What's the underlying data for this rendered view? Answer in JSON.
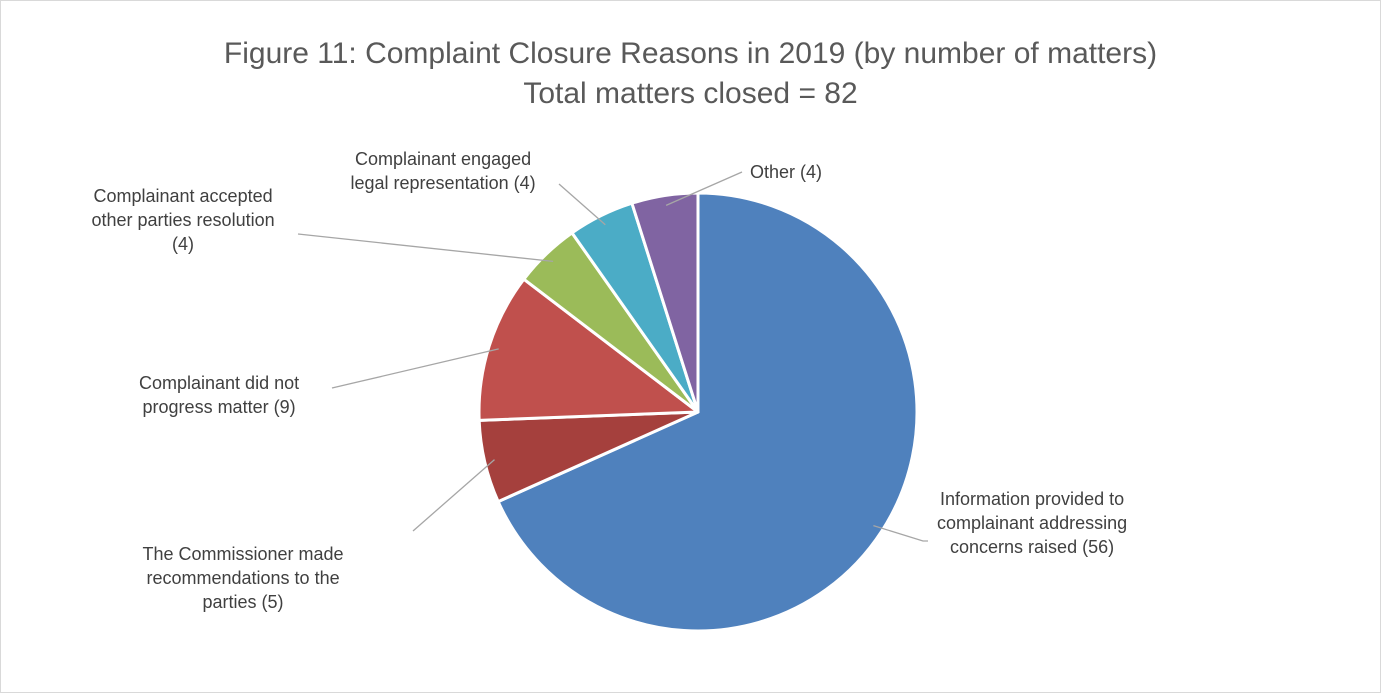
{
  "chart_data": {
    "type": "pie",
    "title": "Figure 11: Complaint Closure Reasons in 2019 (by number of matters)",
    "subtitle": "Total matters closed = 82",
    "slices": [
      {
        "lines": [
          "Information provided to",
          "complainant addressing",
          "concerns raised (56)"
        ],
        "value": 56,
        "color": "#4f81bd"
      },
      {
        "lines": [
          "The Commissioner made",
          "recommendations to the",
          "parties (5)"
        ],
        "value": 5,
        "color": "#a5403d"
      },
      {
        "lines": [
          "Complainant did not",
          "progress matter (9)"
        ],
        "value": 9,
        "color": "#c0504d"
      },
      {
        "lines": [
          "Complainant accepted",
          "other parties resolution",
          "(4)"
        ],
        "value": 4,
        "color": "#9bbb59"
      },
      {
        "lines": [
          "Complainant engaged",
          "legal representation (4)"
        ],
        "value": 4,
        "color": "#4bacc6"
      },
      {
        "lines": [
          "Other (4)"
        ],
        "value": 4,
        "color": "#8064a2"
      }
    ]
  }
}
